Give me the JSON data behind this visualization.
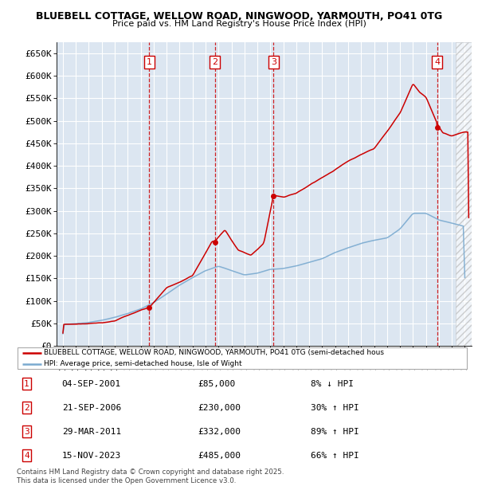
{
  "title1": "BLUEBELL COTTAGE, WELLOW ROAD, NINGWOOD, YARMOUTH, PO41 0TG",
  "title2": "Price paid vs. HM Land Registry's House Price Index (HPI)",
  "legend_line1": "BLUEBELL COTTAGE, WELLOW ROAD, NINGWOOD, YARMOUTH, PO41 0TG (semi-detached hous",
  "legend_line2": "HPI: Average price, semi-detached house, Isle of Wight",
  "footer1": "Contains HM Land Registry data © Crown copyright and database right 2025.",
  "footer2": "This data is licensed under the Open Government Licence v3.0.",
  "sales": [
    {
      "num": 1,
      "date": "04-SEP-2001",
      "price": 85000,
      "pct": "8%",
      "dir": "↓",
      "x_year": 2001.67
    },
    {
      "num": 2,
      "date": "21-SEP-2006",
      "price": 230000,
      "pct": "30%",
      "dir": "↑",
      "x_year": 2006.72
    },
    {
      "num": 3,
      "date": "29-MAR-2011",
      "price": 332000,
      "pct": "89%",
      "dir": "↑",
      "x_year": 2011.24
    },
    {
      "num": 4,
      "date": "15-NOV-2023",
      "price": 485000,
      "pct": "66%",
      "dir": "↑",
      "x_year": 2023.87
    }
  ],
  "ylim": [
    0,
    675000
  ],
  "xlim": [
    1994.5,
    2026.5
  ],
  "yticks": [
    0,
    50000,
    100000,
    150000,
    200000,
    250000,
    300000,
    350000,
    400000,
    450000,
    500000,
    550000,
    600000,
    650000
  ],
  "ytick_labels": [
    "£0",
    "£50K",
    "£100K",
    "£150K",
    "£200K",
    "£250K",
    "£300K",
    "£350K",
    "£400K",
    "£450K",
    "£500K",
    "£550K",
    "£600K",
    "£650K"
  ],
  "hpi_color": "#7aaad0",
  "sale_color": "#cc0000",
  "bg_color": "#dce6f1",
  "grid_color": "#ffffff",
  "label_color": "#cc0000",
  "hpi_anchors_x": [
    1995,
    1996,
    1997,
    1998,
    1999,
    2000,
    2001,
    2002,
    2003,
    2004,
    2005,
    2006,
    2007,
    2008,
    2009,
    2010,
    2011,
    2012,
    2013,
    2014,
    2015,
    2016,
    2017,
    2018,
    2019,
    2020,
    2021,
    2022,
    2023,
    2024,
    2025,
    2026
  ],
  "hpi_anchors_y": [
    47000,
    48500,
    52000,
    57000,
    63000,
    72000,
    82000,
    96000,
    115000,
    135000,
    152000,
    168000,
    178000,
    168000,
    158000,
    162000,
    170000,
    172000,
    178000,
    186000,
    194000,
    208000,
    218000,
    228000,
    235000,
    240000,
    260000,
    295000,
    295000,
    280000,
    273000,
    265000
  ],
  "prop_anchors_x": [
    1995,
    1997,
    1999,
    2001.67,
    2001.67,
    2003,
    2005,
    2006.5,
    2006.72,
    2006.72,
    2007.5,
    2008.5,
    2009.5,
    2010.5,
    2011.24,
    2011.24,
    2012,
    2013,
    2015,
    2017,
    2019,
    2021,
    2022.0,
    2022.5,
    2023.0,
    2023.87,
    2023.87,
    2024.3,
    2025.0,
    2026.0
  ],
  "prop_anchors_y": [
    47000,
    49000,
    53000,
    85000,
    85000,
    128000,
    153000,
    230000,
    230000,
    230000,
    255000,
    210000,
    198000,
    225000,
    332000,
    332000,
    327000,
    335000,
    370000,
    405000,
    432000,
    510000,
    575000,
    555000,
    545000,
    485000,
    485000,
    465000,
    458000,
    468000
  ]
}
